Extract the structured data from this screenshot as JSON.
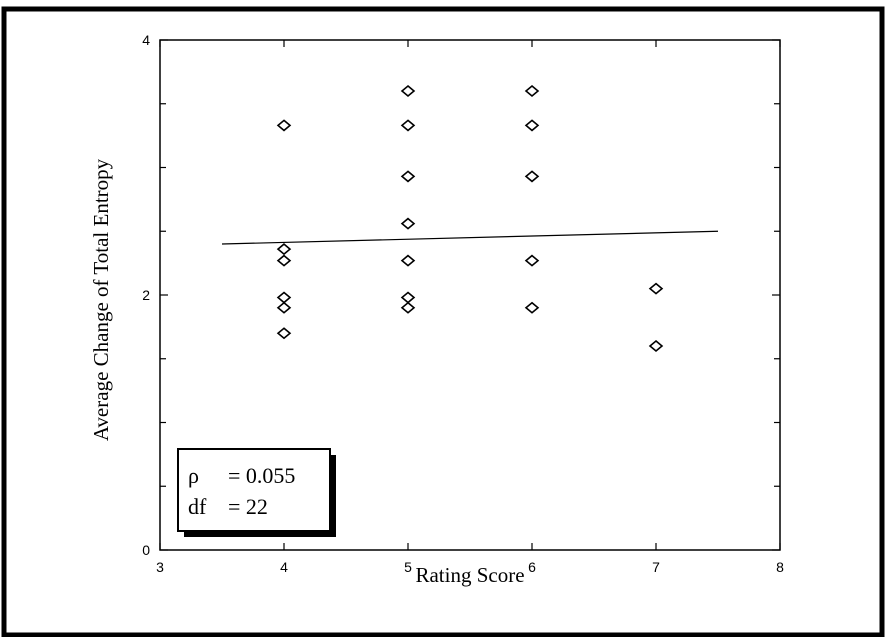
{
  "chart_data": {
    "type": "scatter",
    "xlabel": "Rating Score",
    "ylabel": "Average Change of Total Entropy",
    "xlim": [
      3,
      8
    ],
    "ylim": [
      0,
      4
    ],
    "x_ticks": [
      3,
      4,
      5,
      6,
      7,
      8
    ],
    "y_ticks": [
      0,
      2,
      4
    ],
    "points": [
      {
        "x": 4,
        "y": 3.33
      },
      {
        "x": 4,
        "y": 2.36
      },
      {
        "x": 4,
        "y": 2.27
      },
      {
        "x": 4,
        "y": 1.98
      },
      {
        "x": 4,
        "y": 1.9
      },
      {
        "x": 4,
        "y": 1.7
      },
      {
        "x": 5,
        "y": 3.6
      },
      {
        "x": 5,
        "y": 3.33
      },
      {
        "x": 5,
        "y": 2.93
      },
      {
        "x": 5,
        "y": 2.56
      },
      {
        "x": 5,
        "y": 2.27
      },
      {
        "x": 5,
        "y": 1.98
      },
      {
        "x": 5,
        "y": 1.9
      },
      {
        "x": 6,
        "y": 3.6
      },
      {
        "x": 6,
        "y": 3.33
      },
      {
        "x": 6,
        "y": 2.93
      },
      {
        "x": 6,
        "y": 2.27
      },
      {
        "x": 6,
        "y": 1.9
      },
      {
        "x": 7,
        "y": 2.05
      },
      {
        "x": 7,
        "y": 1.6
      }
    ],
    "fit_line": {
      "x": [
        3.5,
        7.5
      ],
      "y": [
        2.4,
        2.5
      ]
    },
    "grid": false,
    "stats": {
      "rho_symbol": "ρ",
      "rho_value": "= 0.055",
      "df_label": "df",
      "df_value": "= 22"
    }
  }
}
